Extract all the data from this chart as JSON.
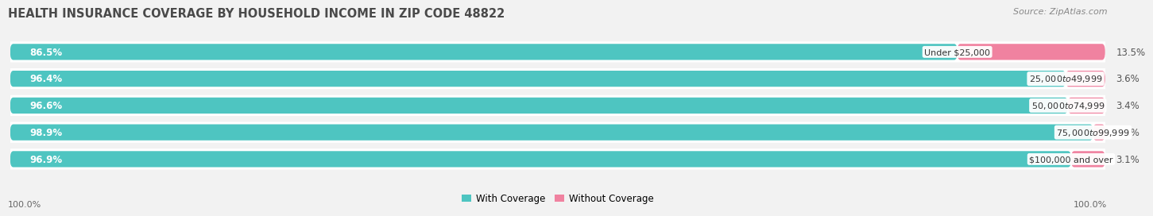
{
  "title": "HEALTH INSURANCE COVERAGE BY HOUSEHOLD INCOME IN ZIP CODE 48822",
  "source": "Source: ZipAtlas.com",
  "categories": [
    "Under $25,000",
    "$25,000 to $49,999",
    "$50,000 to $74,999",
    "$75,000 to $99,999",
    "$100,000 and over"
  ],
  "with_coverage": [
    86.5,
    96.4,
    96.6,
    98.9,
    96.9
  ],
  "without_coverage": [
    13.5,
    3.6,
    3.4,
    1.1,
    3.1
  ],
  "color_with": "#4EC5C1",
  "color_without": "#F082A0",
  "color_bg_row": "#EDEDF0",
  "bottom_left_label": "100.0%",
  "bottom_right_label": "100.0%",
  "legend_with": "With Coverage",
  "legend_without": "Without Coverage",
  "title_fontsize": 10.5,
  "source_fontsize": 8,
  "bar_label_fontsize": 8.5,
  "category_label_fontsize": 8,
  "fig_bg": "#f2f2f2"
}
